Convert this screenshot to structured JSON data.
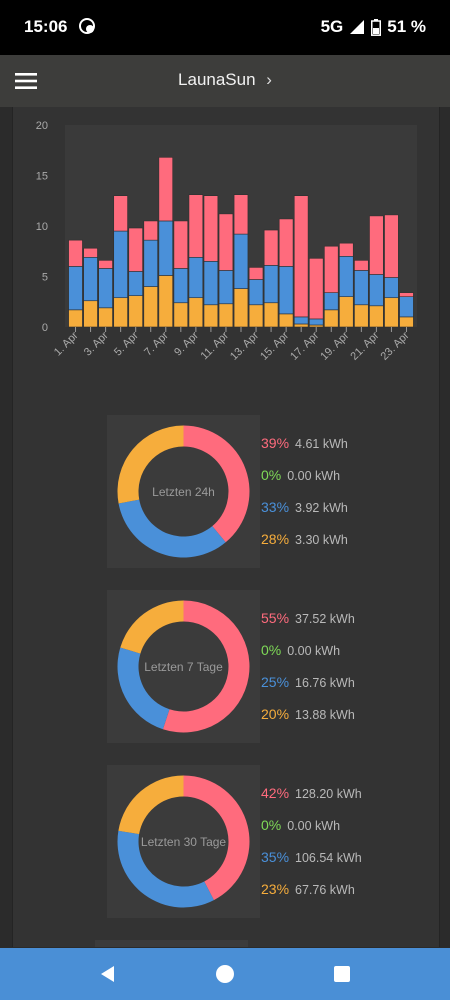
{
  "status_bar": {
    "time": "15:06",
    "network": "5G",
    "battery": "51 %"
  },
  "app_bar": {
    "title": "LaunaSun",
    "chevron": "›"
  },
  "colors": {
    "red": "#ff6b7d",
    "green": "#7ed957",
    "blue": "#4a90d9",
    "orange": "#f6ad3c"
  },
  "chart_data": {
    "type": "bar",
    "stacked": true,
    "categories": [
      "1. Apr",
      "2. Apr",
      "3. Apr",
      "4. Apr",
      "5. Apr",
      "6. Apr",
      "7. Apr",
      "8. Apr",
      "9. Apr",
      "10. Apr",
      "11. Apr",
      "12. Apr",
      "13. Apr",
      "14. Apr",
      "15. Apr",
      "16. Apr",
      "17. Apr",
      "18. Apr",
      "19. Apr",
      "20. Apr",
      "21. Apr",
      "22. Apr",
      "23. Apr"
    ],
    "tick_labels": [
      "1. Apr",
      "3. Apr",
      "5. Apr",
      "7. Apr",
      "9. Apr",
      "11. Apr",
      "13. Apr",
      "15. Apr",
      "17. Apr",
      "19. Apr",
      "21. Apr",
      "23. Apr"
    ],
    "series": [
      {
        "color": "#f6ad3c",
        "values": [
          1.7,
          2.6,
          1.9,
          2.9,
          3.1,
          4.0,
          5.1,
          2.4,
          2.9,
          2.2,
          2.3,
          3.8,
          2.2,
          2.4,
          1.3,
          0.3,
          0.2,
          1.7,
          3.0,
          2.2,
          2.1,
          2.9,
          1.0
        ]
      },
      {
        "color": "#4a90d9",
        "values": [
          4.3,
          4.3,
          3.9,
          6.6,
          2.4,
          4.6,
          5.4,
          3.4,
          4.0,
          4.3,
          3.3,
          5.4,
          2.5,
          3.7,
          4.7,
          0.7,
          0.6,
          1.7,
          4.0,
          3.4,
          3.1,
          2.0,
          2.0
        ]
      },
      {
        "color": "#ff6b7d",
        "values": [
          2.6,
          0.9,
          0.8,
          3.5,
          4.3,
          1.9,
          6.3,
          4.7,
          6.2,
          6.5,
          5.6,
          3.9,
          1.2,
          3.5,
          4.7,
          12.0,
          6.0,
          4.6,
          1.3,
          1.0,
          5.8,
          6.2,
          0.4
        ]
      }
    ],
    "ylim": [
      0,
      20
    ],
    "yticks": [
      0,
      5,
      10,
      15,
      20
    ],
    "grid": false
  },
  "summaries": [
    {
      "label": "Letzten 24h",
      "items": [
        {
          "pct": "39%",
          "value": "4.61 kWh",
          "color": "#ff6b7d"
        },
        {
          "pct": "0%",
          "value": "0.00 kWh",
          "color": "#7ed957"
        },
        {
          "pct": "33%",
          "value": "3.92 kWh",
          "color": "#4a90d9"
        },
        {
          "pct": "28%",
          "value": "3.30 kWh",
          "color": "#f6ad3c"
        }
      ]
    },
    {
      "label": "Letzten 7 Tage",
      "items": [
        {
          "pct": "55%",
          "value": "37.52 kWh",
          "color": "#ff6b7d"
        },
        {
          "pct": "0%",
          "value": "0.00 kWh",
          "color": "#7ed957"
        },
        {
          "pct": "25%",
          "value": "16.76 kWh",
          "color": "#4a90d9"
        },
        {
          "pct": "20%",
          "value": "13.88 kWh",
          "color": "#f6ad3c"
        }
      ]
    },
    {
      "label": "Letzten 30 Tage",
      "items": [
        {
          "pct": "42%",
          "value": "128.20 kWh",
          "color": "#ff6b7d"
        },
        {
          "pct": "0%",
          "value": "0.00 kWh",
          "color": "#7ed957"
        },
        {
          "pct": "35%",
          "value": "106.54 kWh",
          "color": "#4a90d9"
        },
        {
          "pct": "23%",
          "value": "67.76 kWh",
          "color": "#f6ad3c"
        }
      ]
    }
  ]
}
